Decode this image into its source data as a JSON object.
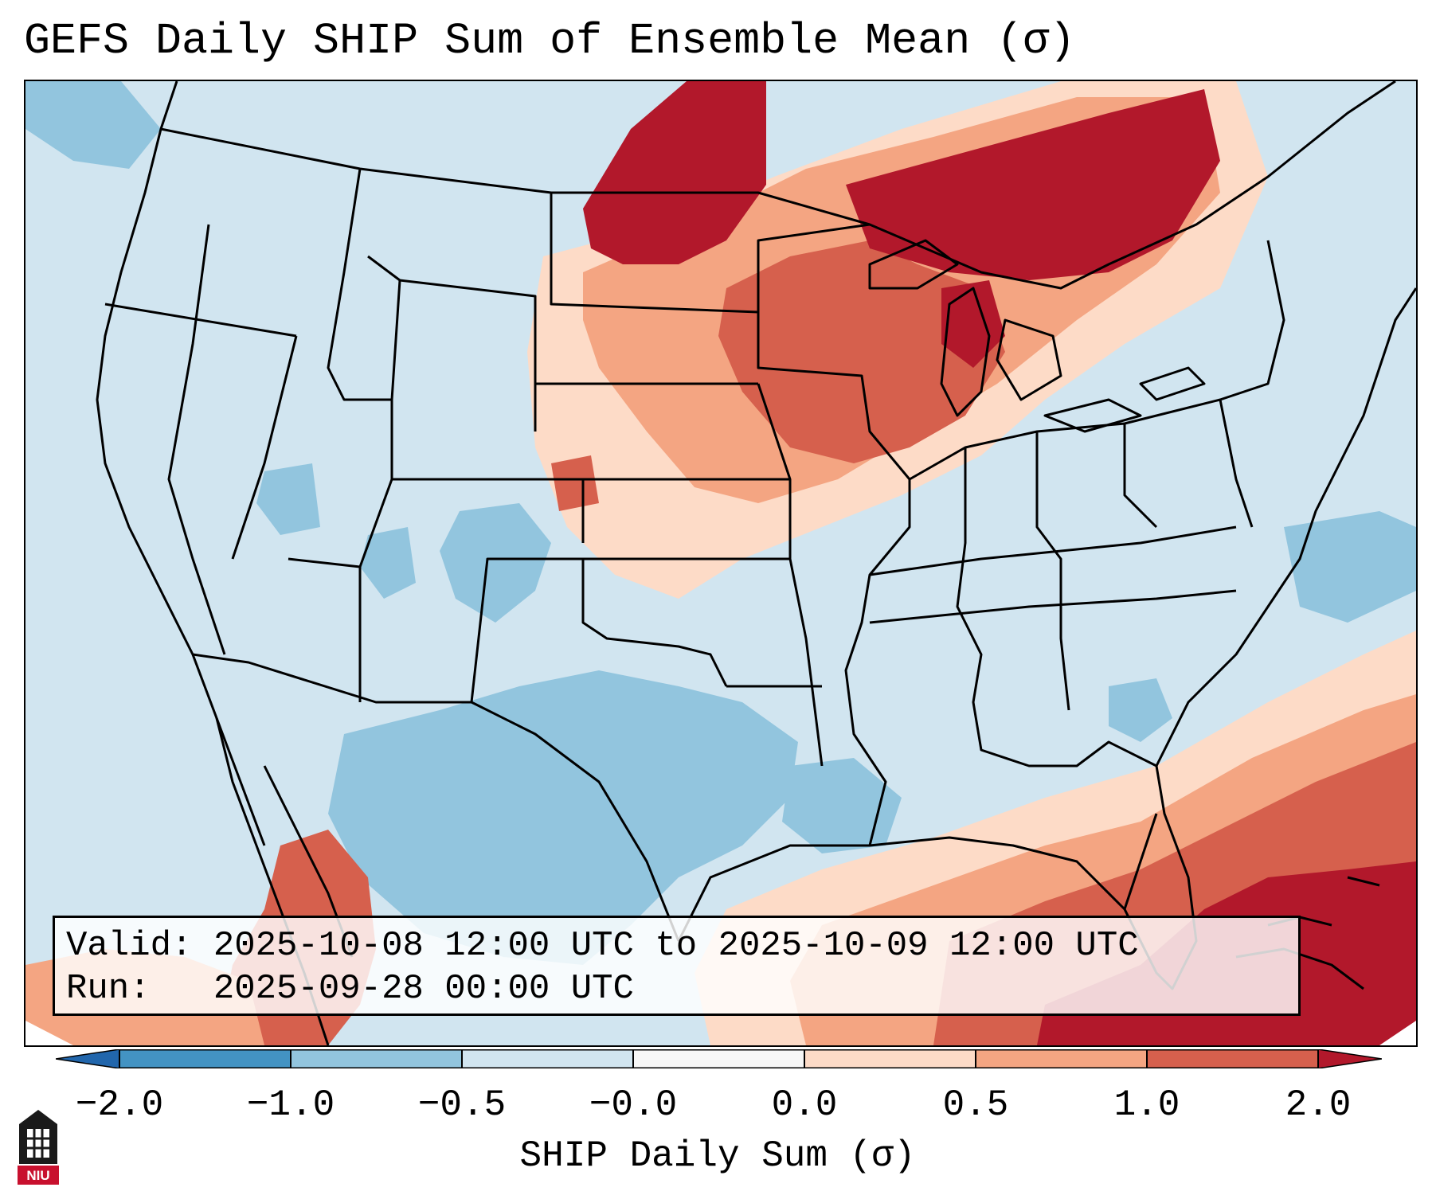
{
  "title": "GEFS Daily SHIP Sum of Ensemble Mean (σ)",
  "info_box": {
    "valid_label": "Valid:",
    "valid_value": "2025-10-08 12:00 UTC to 2025-10-09 12:00 UTC",
    "run_label": "Run:",
    "run_value": "2025-09-28 00:00 UTC"
  },
  "colorbar": {
    "label": "SHIP Daily Sum (σ)",
    "ticks": [
      "−2.0",
      "−1.0",
      "−0.5",
      "−0.0",
      "0.0",
      "0.5",
      "1.0",
      "2.0"
    ],
    "colors": [
      "#4393c3",
      "#92c5de",
      "#d1e5f0",
      "#f7f7f7",
      "#fddbc7",
      "#f4a582",
      "#d6604d",
      "#b2182b"
    ],
    "under_color": "#2166ac",
    "over_color": "#b2182b"
  },
  "logo": {
    "text": "NIU"
  }
}
